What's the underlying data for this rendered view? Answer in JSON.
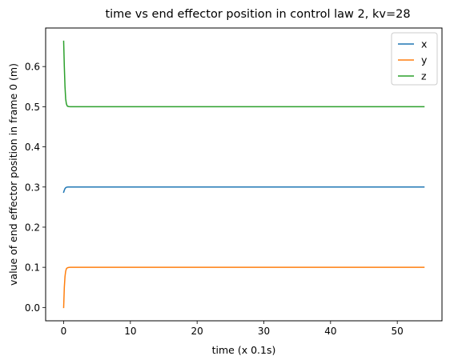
{
  "chart_data": {
    "type": "line",
    "title": "time vs end effector position in control law 2, kv=28",
    "xlabel": "time (x 0.1s)",
    "ylabel": "value of end effector position in frame 0 (m)",
    "xlim": [
      -2.7,
      56.7
    ],
    "ylim": [
      -0.0332,
      0.696
    ],
    "xticks": [
      0,
      10,
      20,
      30,
      40,
      50
    ],
    "yticks": [
      0.0,
      0.1,
      0.2,
      0.3,
      0.4,
      0.5,
      0.6
    ],
    "xtick_labels": [
      "0",
      "10",
      "20",
      "30",
      "40",
      "50"
    ],
    "ytick_labels": [
      "0.0",
      "0.1",
      "0.2",
      "0.3",
      "0.4",
      "0.5",
      "0.6"
    ],
    "grid": false,
    "legend": "top-right",
    "series": [
      {
        "name": "x",
        "color": "#1f77b4",
        "x": [
          0,
          0.1,
          0.2,
          0.3,
          0.4,
          0.5,
          0.7,
          1.0,
          2,
          5,
          10,
          17,
          25,
          35,
          48,
          54
        ],
        "y": [
          0.287,
          0.292,
          0.296,
          0.298,
          0.2992,
          0.2997,
          0.2999,
          0.3,
          0.3,
          0.3,
          0.3,
          0.3,
          0.3,
          0.3,
          0.3,
          0.3
        ]
      },
      {
        "name": "y",
        "color": "#ff7f0e",
        "x": [
          0,
          0.1,
          0.2,
          0.3,
          0.4,
          0.5,
          0.6,
          0.8,
          1.0,
          2,
          5,
          10,
          17,
          25,
          35,
          48,
          54
        ],
        "y": [
          0.0,
          0.05,
          0.077,
          0.09,
          0.096,
          0.098,
          0.099,
          0.0997,
          0.1,
          0.1,
          0.1,
          0.1,
          0.1,
          0.1,
          0.1,
          0.1,
          0.1
        ]
      },
      {
        "name": "z",
        "color": "#2ca02c",
        "x": [
          0,
          0.1,
          0.2,
          0.3,
          0.4,
          0.5,
          0.6,
          0.8,
          1.0,
          2,
          5,
          10,
          17,
          25,
          35,
          48,
          54
        ],
        "y": [
          0.663,
          0.6,
          0.55,
          0.52,
          0.508,
          0.503,
          0.501,
          0.5003,
          0.5,
          0.5,
          0.5,
          0.5,
          0.5,
          0.5,
          0.5,
          0.5,
          0.5
        ]
      }
    ]
  }
}
